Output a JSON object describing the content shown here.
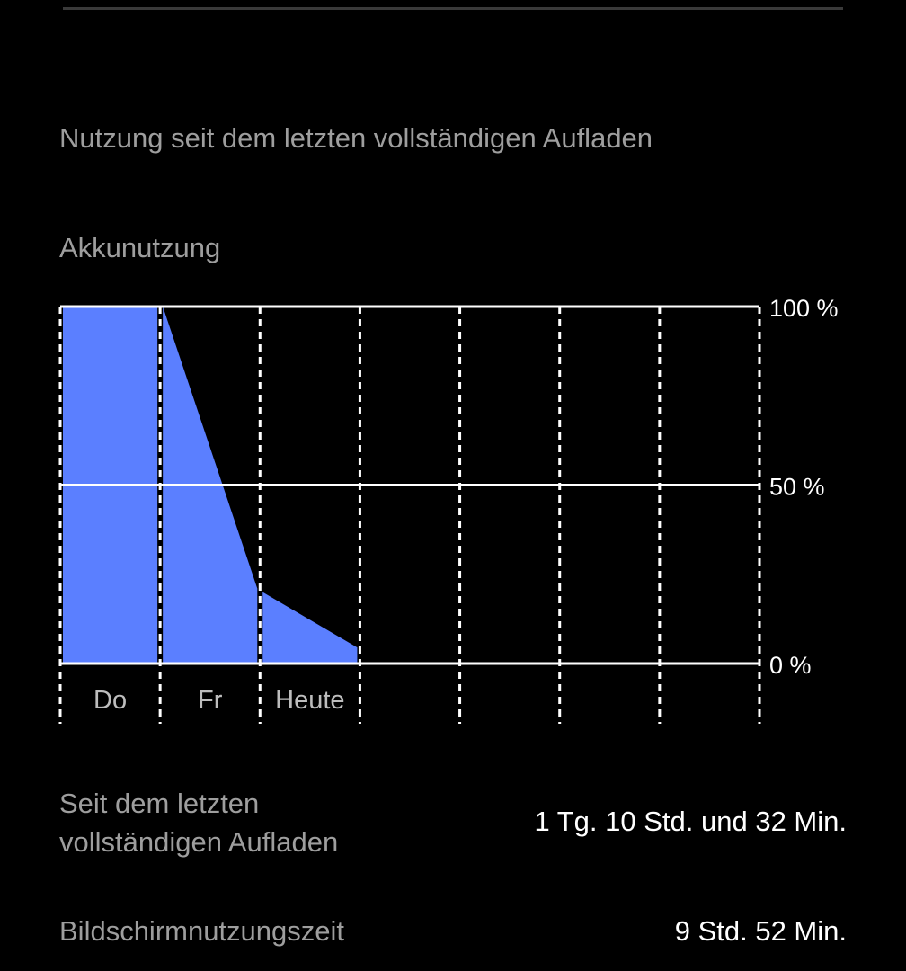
{
  "section_title": "Nutzung seit dem letzten vollständigen Aufladen",
  "chart_title": "Akkunutzung",
  "chart_data": {
    "type": "area",
    "title": "Akkunutzung",
    "categories": [
      "Do",
      "Fr",
      "Heute",
      "",
      "",
      "",
      ""
    ],
    "y_ticks": [
      "100 %",
      "50 %",
      "0 %"
    ],
    "ylim": [
      0,
      100
    ],
    "segments": [
      {
        "label": "Do",
        "start": 100,
        "end": 100
      },
      {
        "label": "Fr",
        "start": 100,
        "end": 21
      },
      {
        "label": "Heute",
        "start": 20,
        "end": 4.5
      }
    ],
    "fill_color": "#5b7fff",
    "grid": true
  },
  "rows": [
    {
      "label_lines": [
        "Seit dem letzten",
        "vollständigen Aufladen"
      ],
      "value": "1 Tg. 10 Std. und 32 Min."
    },
    {
      "label_lines": [
        "Bildschirmnutzungszeit"
      ],
      "value": "9 Std. 52 Min."
    }
  ]
}
